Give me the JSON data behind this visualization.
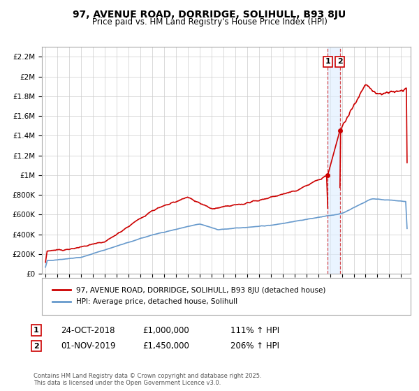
{
  "title": "97, AVENUE ROAD, DORRIDGE, SOLIHULL, B93 8JU",
  "subtitle": "Price paid vs. HM Land Registry's House Price Index (HPI)",
  "ylim": [
    0,
    2300000
  ],
  "xlim_start": 1994.7,
  "xlim_end": 2025.8,
  "yticks": [
    0,
    200000,
    400000,
    600000,
    800000,
    1000000,
    1200000,
    1400000,
    1600000,
    1800000,
    2000000,
    2200000
  ],
  "ytick_labels": [
    "£0",
    "£200K",
    "£400K",
    "£600K",
    "£800K",
    "£1M",
    "£1.2M",
    "£1.4M",
    "£1.6M",
    "£1.8M",
    "£2M",
    "£2.2M"
  ],
  "hpi_color": "#6699cc",
  "price_color": "#cc0000",
  "marker_color": "#cc0000",
  "vline1_x": 2018.81,
  "vline2_x": 2019.83,
  "marker1_x": 2018.81,
  "marker1_y": 1000000,
  "marker2_x": 2019.83,
  "marker2_y": 1450000,
  "annotation_box_color": "#cc0000",
  "legend_label_price": "97, AVENUE ROAD, DORRIDGE, SOLIHULL, B93 8JU (detached house)",
  "legend_label_hpi": "HPI: Average price, detached house, Solihull",
  "note1_date": "24-OCT-2018",
  "note1_price": "£1,000,000",
  "note1_hpi": "111% ↑ HPI",
  "note2_date": "01-NOV-2019",
  "note2_price": "£1,450,000",
  "note2_hpi": "206% ↑ HPI",
  "footer": "Contains HM Land Registry data © Crown copyright and database right 2025.\nThis data is licensed under the Open Government Licence v3.0.",
  "background_color": "#ffffff",
  "grid_color": "#cccccc",
  "shade_color": "#ddeeff"
}
